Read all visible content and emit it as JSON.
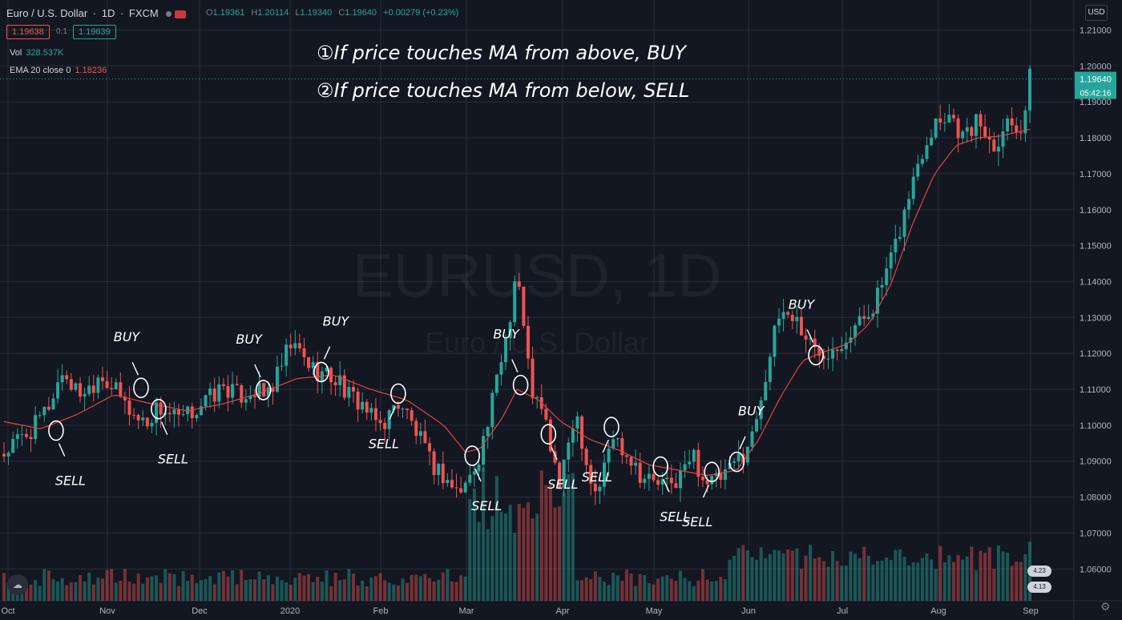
{
  "header": {
    "symbol": "Euro / U.S. Dollar",
    "interval": "1D",
    "exchange": "FXCM",
    "ohlc": {
      "open_label": "O",
      "open": "1.19361",
      "high_label": "H",
      "high": "1.20114",
      "low_label": "L",
      "low": "1.19340",
      "close_label": "C",
      "close": "1.19640",
      "change": "+0.00279 (+0.23%)"
    },
    "bid": "1.19638",
    "spread": "0.1",
    "ask": "1.19639",
    "vol_label": "Vol",
    "vol_value": "328.537K",
    "ema_label": "EMA 20 close 0",
    "ema_value": "1.18236",
    "currency": "USD"
  },
  "colors": {
    "up": "#26a69a",
    "down": "#ef5350",
    "ema": "#e0453e",
    "bg": "#131722",
    "grid": "#2a2e39"
  },
  "icons": [
    "chart-logo-icon",
    "settings-icon",
    "status-dot-icon",
    "flag-icon"
  ],
  "chart_data": {
    "type": "candlestick",
    "title": "Euro / U.S. Dollar · 1D · FXCM",
    "watermark": "EURUSD, 1D",
    "watermark_sub": "Euro / U.S. Dollar",
    "ylim": [
      1.05,
      1.215
    ],
    "y_ticks": [
      "1.21000",
      "1.20000",
      "1.19000",
      "1.18000",
      "1.17000",
      "1.16000",
      "1.15000",
      "1.14000",
      "1.13000",
      "1.12000",
      "1.11000",
      "1.10000",
      "1.09000",
      "1.08000",
      "1.07000",
      "1.06000"
    ],
    "x_ticks": [
      "Oct",
      "Nov",
      "Dec",
      "2020",
      "Feb",
      "Mar",
      "Apr",
      "May",
      "Jun",
      "Jul",
      "Aug",
      "Sep"
    ],
    "last_price_label": "1.19640",
    "countdown_label": "05:42:16",
    "pill_labels": [
      "4.23",
      "4.13"
    ],
    "notes": [
      "①If price touches MA from above, BUY",
      "②If price touches MA from below, SELL"
    ],
    "annotations": [
      {
        "label": "SELL",
        "t": 0.071,
        "p": 1.0985
      },
      {
        "label": "BUY",
        "t": 0.187,
        "p": 1.1104
      },
      {
        "label": "SELL",
        "t": 0.211,
        "p": 1.1045
      },
      {
        "label": "BUY",
        "t": 0.354,
        "p": 1.1098
      },
      {
        "label": "BUY",
        "t": 0.433,
        "p": 1.1148
      },
      {
        "label": "SELL",
        "t": 0.538,
        "p": 1.1088
      },
      {
        "label": "SELL",
        "t": 0.639,
        "p": 1.0915
      },
      {
        "label": "BUY",
        "t": 0.705,
        "p": 1.1112
      },
      {
        "label": "SELL",
        "t": 0.743,
        "p": 1.0975
      },
      {
        "label": "SELL",
        "t": 0.829,
        "p": 1.0995
      },
      {
        "label": "SELL",
        "t": 0.896,
        "p": 1.0885
      },
      {
        "label": "SELL",
        "t": 0.966,
        "p": 1.087
      },
      {
        "label": "BUY",
        "t": 1.0,
        "p": 1.0898
      },
      {
        "label": "BUY",
        "t": 1.108,
        "p": 1.1195
      }
    ],
    "price_path": [
      [
        0,
        1.092
      ],
      [
        0.02,
        1.096
      ],
      [
        0.04,
        1.099
      ],
      [
        0.06,
        1.105
      ],
      [
        0.08,
        1.115
      ],
      [
        0.09,
        1.112
      ],
      [
        0.1,
        1.109
      ],
      [
        0.12,
        1.111
      ],
      [
        0.13,
        1.115
      ],
      [
        0.15,
        1.11
      ],
      [
        0.165,
        1.106
      ],
      [
        0.18,
        1.102
      ],
      [
        0.195,
        1.101
      ],
      [
        0.21,
        1.105
      ],
      [
        0.22,
        1.104
      ],
      [
        0.24,
        1.101
      ],
      [
        0.25,
        1.1025
      ],
      [
        0.27,
        1.106
      ],
      [
        0.29,
        1.109
      ],
      [
        0.3,
        1.111
      ],
      [
        0.32,
        1.108
      ],
      [
        0.34,
        1.11
      ],
      [
        0.355,
        1.108
      ],
      [
        0.37,
        1.112
      ],
      [
        0.38,
        1.117
      ],
      [
        0.39,
        1.122
      ],
      [
        0.4,
        1.121
      ],
      [
        0.42,
        1.116
      ],
      [
        0.44,
        1.114
      ],
      [
        0.46,
        1.112
      ],
      [
        0.47,
        1.108
      ],
      [
        0.49,
        1.106
      ],
      [
        0.5,
        1.102
      ],
      [
        0.515,
        1.1
      ],
      [
        0.53,
        1.104
      ],
      [
        0.54,
        1.107
      ],
      [
        0.555,
        1.101
      ],
      [
        0.57,
        1.095
      ],
      [
        0.58,
        1.09
      ],
      [
        0.6,
        1.086
      ],
      [
        0.62,
        1.081
      ],
      [
        0.635,
        1.085
      ],
      [
        0.65,
        1.093
      ],
      [
        0.66,
        1.1
      ],
      [
        0.675,
        1.115
      ],
      [
        0.69,
        1.13
      ],
      [
        0.7,
        1.145
      ],
      [
        0.71,
        1.125
      ],
      [
        0.72,
        1.11
      ],
      [
        0.73,
        1.105
      ],
      [
        0.74,
        1.1
      ],
      [
        0.75,
        1.09
      ],
      [
        0.76,
        1.082
      ],
      [
        0.77,
        1.095
      ],
      [
        0.78,
        1.105
      ],
      [
        0.79,
        1.095
      ],
      [
        0.8,
        1.085
      ],
      [
        0.81,
        1.081
      ],
      [
        0.83,
        1.097
      ],
      [
        0.84,
        1.095
      ],
      [
        0.86,
        1.09
      ],
      [
        0.87,
        1.086
      ],
      [
        0.89,
        1.084
      ],
      [
        0.91,
        1.083
      ],
      [
        0.93,
        1.088
      ],
      [
        0.94,
        1.092
      ],
      [
        0.955,
        1.085
      ],
      [
        0.97,
        1.084
      ],
      [
        0.99,
        1.087
      ],
      [
        1.0,
        1.09
      ],
      [
        1.02,
        1.096
      ],
      [
        1.04,
        1.115
      ],
      [
        1.06,
        1.132
      ],
      [
        1.08,
        1.13
      ],
      [
        1.09,
        1.126
      ],
      [
        1.1,
        1.123
      ],
      [
        1.11,
        1.12
      ],
      [
        1.13,
        1.122
      ],
      [
        1.15,
        1.125
      ],
      [
        1.17,
        1.129
      ],
      [
        1.19,
        1.135
      ],
      [
        1.21,
        1.145
      ],
      [
        1.23,
        1.16
      ],
      [
        1.25,
        1.175
      ],
      [
        1.27,
        1.185
      ],
      [
        1.29,
        1.187
      ],
      [
        1.31,
        1.18
      ],
      [
        1.33,
        1.185
      ],
      [
        1.35,
        1.178
      ],
      [
        1.37,
        1.185
      ],
      [
        1.39,
        1.183
      ],
      [
        1.4,
        1.1964
      ]
    ],
    "ema_path": [
      [
        0,
        1.101
      ],
      [
        0.05,
        1.099
      ],
      [
        0.1,
        1.103
      ],
      [
        0.15,
        1.1085
      ],
      [
        0.2,
        1.106
      ],
      [
        0.25,
        1.104
      ],
      [
        0.3,
        1.106
      ],
      [
        0.35,
        1.109
      ],
      [
        0.4,
        1.113
      ],
      [
        0.45,
        1.114
      ],
      [
        0.5,
        1.11
      ],
      [
        0.55,
        1.107
      ],
      [
        0.6,
        1.1
      ],
      [
        0.63,
        1.0925
      ],
      [
        0.65,
        1.0935
      ],
      [
        0.68,
        1.102
      ],
      [
        0.7,
        1.11
      ],
      [
        0.73,
        1.107
      ],
      [
        0.76,
        1.101
      ],
      [
        0.8,
        1.096
      ],
      [
        0.84,
        1.093
      ],
      [
        0.88,
        1.089
      ],
      [
        0.92,
        1.0875
      ],
      [
        0.96,
        1.086
      ],
      [
        1.0,
        1.0875
      ],
      [
        1.03,
        1.096
      ],
      [
        1.06,
        1.108
      ],
      [
        1.09,
        1.118
      ],
      [
        1.12,
        1.1205
      ],
      [
        1.15,
        1.1225
      ],
      [
        1.18,
        1.128
      ],
      [
        1.21,
        1.139
      ],
      [
        1.24,
        1.156
      ],
      [
        1.27,
        1.17
      ],
      [
        1.3,
        1.178
      ],
      [
        1.33,
        1.18
      ],
      [
        1.36,
        1.1805
      ],
      [
        1.4,
        1.1824
      ]
    ]
  }
}
